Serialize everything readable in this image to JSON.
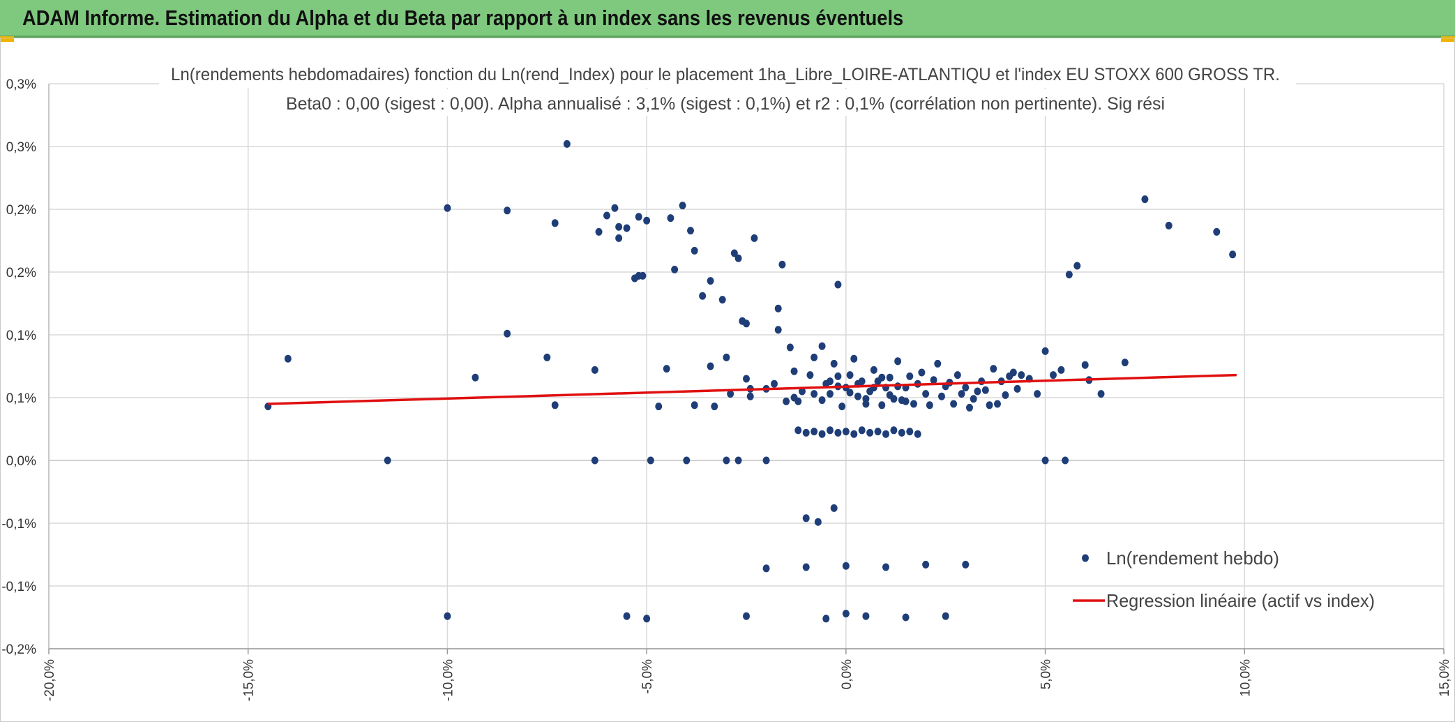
{
  "header": {
    "title": "ADAM Informe. Estimation du Alpha et du Beta par rapport à un index sans les revenus éventuels"
  },
  "colors": {
    "banner": "#7fc97f",
    "points": "#1f3e78",
    "regression": "#e01010",
    "grid": "#d9d9d9",
    "accent": "#f0b400"
  },
  "chart_data": {
    "type": "scatter",
    "title_line1": "Ln(rendements hebdomadaires) fonction du Ln(rend_Index) pour le placement 1ha_Libre_LOIRE-ATLANTIQU et l'index EU STOXX 600 GROSS TR.",
    "title_line2": "Beta0 : 0,00 (sigest : 0,00). Alpha annualisé : 3,1% (sigest : 0,1%) et r2 : 0,1% (corrélation non pertinente). Sig rési",
    "x_range": [
      -0.2,
      0.15
    ],
    "y_range": [
      -0.0015,
      0.003
    ],
    "x_ticks": [
      {
        "v": -0.2,
        "label": "-20,0%"
      },
      {
        "v": -0.15,
        "label": "-15,0%"
      },
      {
        "v": -0.1,
        "label": "-10,0%"
      },
      {
        "v": -0.05,
        "label": "-5,0%"
      },
      {
        "v": 0.0,
        "label": "0,0%"
      },
      {
        "v": 0.05,
        "label": "5,0%"
      },
      {
        "v": 0.1,
        "label": "10,0%"
      },
      {
        "v": 0.15,
        "label": "15,0%"
      }
    ],
    "y_ticks": [
      {
        "v": 0.003,
        "label": "0,3%"
      },
      {
        "v": 0.0025,
        "label": "0,3%"
      },
      {
        "v": 0.002,
        "label": "0,2%"
      },
      {
        "v": 0.0015,
        "label": "0,2%"
      },
      {
        "v": 0.001,
        "label": "0,1%"
      },
      {
        "v": 0.0005,
        "label": "0,1%"
      },
      {
        "v": 0.0,
        "label": "0,0%"
      },
      {
        "v": -0.0005,
        "label": "-0,1%"
      },
      {
        "v": -0.001,
        "label": "-0,1%"
      },
      {
        "v": -0.0015,
        "label": "-0,2%"
      }
    ],
    "series": [
      {
        "name": "Ln(rendement hebdo)",
        "type": "scatter",
        "points": [
          [
            -0.145,
            0.00043
          ],
          [
            -0.14,
            0.00081
          ],
          [
            -0.115,
            0.0
          ],
          [
            -0.1,
            0.00201
          ],
          [
            -0.1,
            -0.00124
          ],
          [
            -0.093,
            0.00066
          ],
          [
            -0.085,
            0.00199
          ],
          [
            -0.085,
            0.00101
          ],
          [
            -0.075,
            0.00082
          ],
          [
            -0.073,
            0.00189
          ],
          [
            -0.073,
            0.00044
          ],
          [
            -0.07,
            0.00252
          ],
          [
            -0.063,
            0.00072
          ],
          [
            -0.063,
            0.0
          ],
          [
            -0.062,
            0.00182
          ],
          [
            -0.06,
            0.00195
          ],
          [
            -0.058,
            0.00201
          ],
          [
            -0.057,
            0.00186
          ],
          [
            -0.057,
            0.00177
          ],
          [
            -0.055,
            0.00185
          ],
          [
            -0.053,
            0.00145
          ],
          [
            -0.052,
            0.00194
          ],
          [
            -0.051,
            0.00147
          ],
          [
            -0.05,
            0.00191
          ],
          [
            -0.05,
            -0.00126
          ],
          [
            -0.055,
            -0.00124
          ],
          [
            -0.052,
            0.00147
          ],
          [
            -0.049,
            0.0
          ],
          [
            -0.047,
            0.00043
          ],
          [
            -0.045,
            0.00073
          ],
          [
            -0.044,
            0.00193
          ],
          [
            -0.043,
            0.00152
          ],
          [
            -0.041,
            0.00203
          ],
          [
            -0.04,
            0.0
          ],
          [
            -0.039,
            0.00183
          ],
          [
            -0.038,
            0.00167
          ],
          [
            -0.038,
            0.00044
          ],
          [
            -0.036,
            0.00131
          ],
          [
            -0.034,
            0.00143
          ],
          [
            -0.034,
            0.00075
          ],
          [
            -0.033,
            0.00043
          ],
          [
            -0.031,
            0.00128
          ],
          [
            -0.03,
            0.00082
          ],
          [
            -0.03,
            0.0
          ],
          [
            -0.029,
            0.00053
          ],
          [
            -0.028,
            0.00165
          ],
          [
            -0.027,
            0.00161
          ],
          [
            -0.027,
            0.0
          ],
          [
            -0.026,
            0.00111
          ],
          [
            -0.025,
            0.00109
          ],
          [
            -0.025,
            0.00065
          ],
          [
            -0.024,
            0.00057
          ],
          [
            -0.024,
            0.00051
          ],
          [
            -0.023,
            0.00177
          ],
          [
            -0.02,
            0.00057
          ],
          [
            -0.02,
            0.0
          ],
          [
            -0.018,
            0.00061
          ],
          [
            -0.017,
            0.00104
          ],
          [
            -0.017,
            0.00121
          ],
          [
            -0.016,
            0.00156
          ],
          [
            -0.014,
            0.0009
          ],
          [
            -0.013,
            0.00071
          ],
          [
            -0.012,
            0.00047
          ],
          [
            -0.011,
            0.00055
          ],
          [
            -0.01,
            -0.00046
          ],
          [
            -0.009,
            0.00068
          ],
          [
            -0.008,
            0.00082
          ],
          [
            -0.007,
            -0.00049
          ],
          [
            -0.006,
            0.00091
          ],
          [
            -0.005,
            0.00061
          ],
          [
            -0.004,
            0.00053
          ],
          [
            -0.003,
            0.00077
          ],
          [
            -0.003,
            -0.00038
          ],
          [
            -0.002,
            0.00059
          ],
          [
            -0.002,
            0.0014
          ],
          [
            -0.001,
            0.00043
          ],
          [
            0.0,
            0.00058
          ],
          [
            0.001,
            0.00068
          ],
          [
            0.002,
            0.00081
          ],
          [
            0.003,
            0.00051
          ],
          [
            0.004,
            0.00063
          ],
          [
            0.005,
            0.00045
          ],
          [
            0.006,
            0.00055
          ],
          [
            0.007,
            0.00072
          ],
          [
            0.008,
            0.00063
          ],
          [
            0.009,
            0.00044
          ],
          [
            0.01,
            0.00058
          ],
          [
            0.011,
            0.00066
          ],
          [
            0.012,
            0.00049
          ],
          [
            0.013,
            0.00079
          ],
          [
            0.014,
            0.00048
          ],
          [
            0.015,
            0.00058
          ],
          [
            0.016,
            0.00067
          ],
          [
            0.017,
            0.00045
          ],
          [
            0.018,
            0.00061
          ],
          [
            0.019,
            0.0007
          ],
          [
            0.02,
            0.00053
          ],
          [
            0.021,
            0.00044
          ],
          [
            0.022,
            0.00064
          ],
          [
            0.023,
            0.00077
          ],
          [
            0.024,
            0.00051
          ],
          [
            0.025,
            0.00059
          ],
          [
            0.026,
            0.00062
          ],
          [
            0.027,
            0.00045
          ],
          [
            0.028,
            0.00068
          ],
          [
            0.029,
            0.00053
          ],
          [
            0.03,
            0.00058
          ],
          [
            0.031,
            0.00042
          ],
          [
            0.032,
            0.00049
          ],
          [
            0.033,
            0.00055
          ],
          [
            0.034,
            0.00063
          ],
          [
            0.035,
            0.00056
          ],
          [
            0.036,
            0.00044
          ],
          [
            0.037,
            0.00073
          ],
          [
            0.038,
            0.00045
          ],
          [
            0.039,
            0.00063
          ],
          [
            0.04,
            0.00052
          ],
          [
            0.041,
            0.00067
          ],
          [
            0.042,
            0.0007
          ],
          [
            0.043,
            0.00057
          ],
          [
            0.044,
            0.00068
          ],
          [
            0.046,
            0.00065
          ],
          [
            0.048,
            0.00053
          ],
          [
            0.05,
            0.00087
          ],
          [
            0.05,
            0.0
          ],
          [
            0.052,
            0.00068
          ],
          [
            0.054,
            0.00072
          ],
          [
            0.055,
            0.0
          ],
          [
            0.056,
            0.00148
          ],
          [
            0.058,
            0.00155
          ],
          [
            0.06,
            0.00076
          ],
          [
            0.061,
            0.00064
          ],
          [
            0.064,
            0.00053
          ],
          [
            0.07,
            0.00078
          ],
          [
            0.075,
            0.00208
          ],
          [
            0.081,
            0.00187
          ],
          [
            0.093,
            0.00182
          ],
          [
            0.097,
            0.00164
          ],
          [
            -0.008,
            0.00053
          ],
          [
            -0.006,
            0.00048
          ],
          [
            -0.004,
            0.00063
          ],
          [
            -0.002,
            0.00067
          ],
          [
            0.001,
            0.00054
          ],
          [
            0.003,
            0.00061
          ],
          [
            0.005,
            0.00049
          ],
          [
            0.007,
            0.00058
          ],
          [
            0.009,
            0.00066
          ],
          [
            0.011,
            0.00052
          ],
          [
            0.013,
            0.00059
          ],
          [
            0.015,
            0.00047
          ],
          [
            -0.012,
            0.00024
          ],
          [
            -0.01,
            0.00022
          ],
          [
            -0.008,
            0.00023
          ],
          [
            -0.006,
            0.00021
          ],
          [
            -0.004,
            0.00024
          ],
          [
            -0.002,
            0.00022
          ],
          [
            0.0,
            0.00023
          ],
          [
            0.002,
            0.00021
          ],
          [
            0.004,
            0.00024
          ],
          [
            0.006,
            0.00022
          ],
          [
            0.008,
            0.00023
          ],
          [
            0.01,
            0.00021
          ],
          [
            0.012,
            0.00024
          ],
          [
            0.014,
            0.00022
          ],
          [
            0.016,
            0.00023
          ],
          [
            0.018,
            0.00021
          ],
          [
            -0.015,
            0.00047
          ],
          [
            -0.013,
            0.0005
          ],
          [
            0.0,
            -0.00084
          ],
          [
            0.01,
            -0.00085
          ],
          [
            0.02,
            -0.00083
          ],
          [
            -0.02,
            -0.00086
          ],
          [
            0.03,
            -0.00083
          ],
          [
            -0.01,
            -0.00085
          ],
          [
            0.005,
            -0.00124
          ],
          [
            0.015,
            -0.00125
          ],
          [
            -0.005,
            -0.00126
          ],
          [
            0.025,
            -0.00124
          ],
          [
            -0.025,
            -0.00124
          ],
          [
            0.0,
            -0.00122
          ]
        ]
      },
      {
        "name": "Regression linéaire (actif vs index)",
        "type": "line",
        "points": [
          [
            -0.145,
            0.00045
          ],
          [
            0.098,
            0.00068
          ]
        ]
      }
    ],
    "legend_position": "bottom-right"
  }
}
